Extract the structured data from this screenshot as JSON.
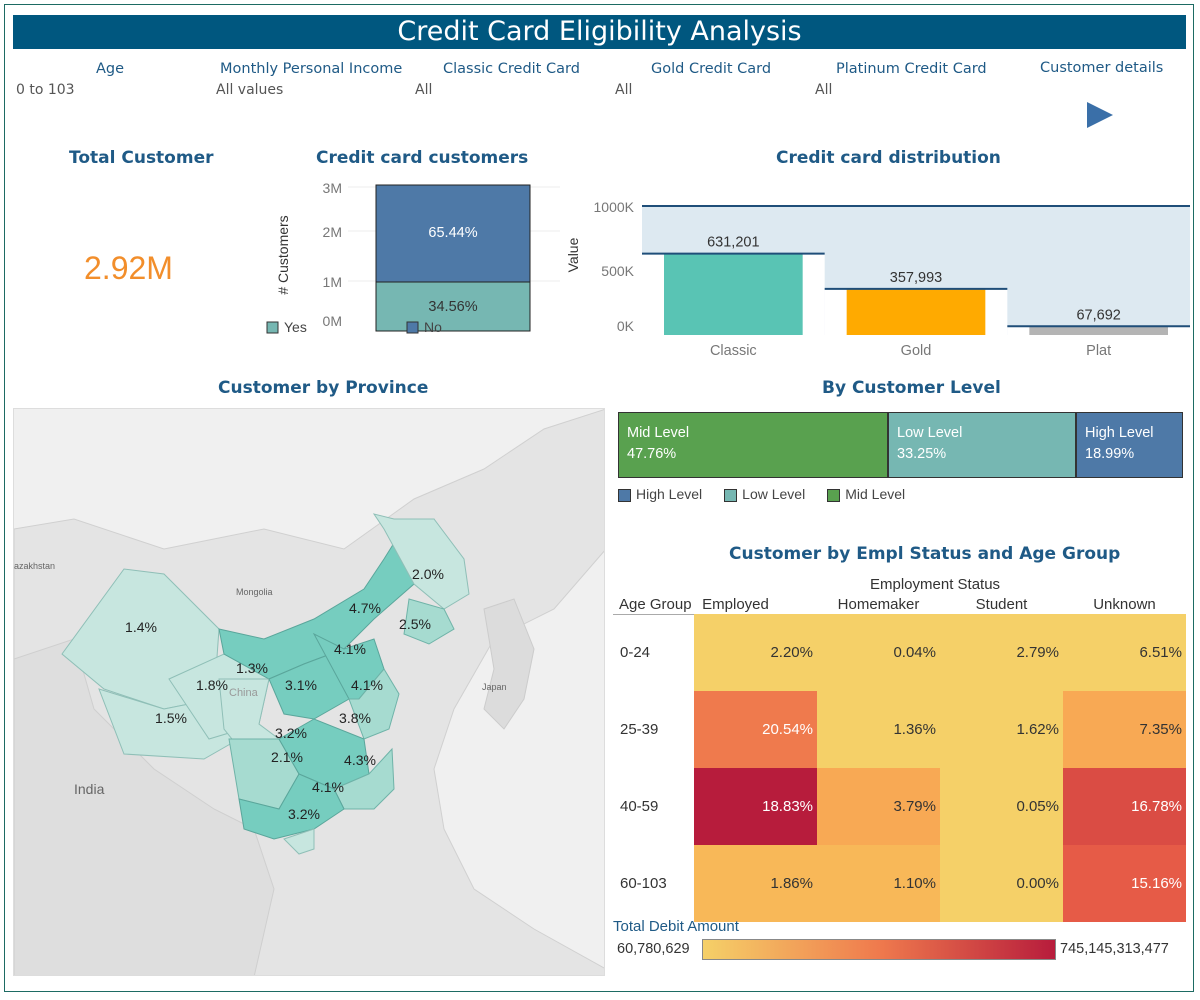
{
  "header": {
    "title": "Credit Card Eligibility Analysis"
  },
  "filters": [
    {
      "label": "Age",
      "value": "0 to 103"
    },
    {
      "label": "Monthly Personal Income",
      "value": "All values"
    },
    {
      "label": "Classic Credit Card",
      "value": "All"
    },
    {
      "label": "Gold Credit Card",
      "value": "All"
    },
    {
      "label": "Platinum Credit Card",
      "value": "All"
    },
    {
      "label": "Customer details",
      "value": ""
    }
  ],
  "kpi": {
    "title": "Total Customer",
    "value": "2.92M",
    "color": "#f28e2b"
  },
  "credit_customers": {
    "title": "Credit card customers",
    "ylabel": "# Customers",
    "ticks": [
      "3M",
      "2M",
      "1M",
      "0M"
    ],
    "segments": [
      {
        "name": "No",
        "label": "65.44%",
        "color": "#4e79a7"
      },
      {
        "name": "Yes",
        "label": "34.56%",
        "color": "#76b7b2"
      }
    ],
    "legend": [
      "Yes",
      "No"
    ]
  },
  "distribution": {
    "title": "Credit card distribution",
    "ylabel": "Value",
    "ticks": [
      "1000K",
      "500K",
      "0K"
    ],
    "bars": [
      {
        "category": "Classic",
        "label": "631,201",
        "color": "#59c4b4"
      },
      {
        "category": "Gold",
        "label": "357,993",
        "color": "#ffaa00"
      },
      {
        "category": "Plat",
        "label": "67,692",
        "color": "#b4b4b4"
      }
    ]
  },
  "province": {
    "title": "Customer by Province",
    "countries": [
      "azakhstan",
      "Mongolia",
      "India",
      "Japan",
      "China"
    ],
    "labels": [
      "2.0%",
      "4.7%",
      "2.5%",
      "1.4%",
      "4.1%",
      "1.3%",
      "1.8%",
      "3.1%",
      "4.1%",
      "1.5%",
      "3.8%",
      "3.2%",
      "2.1%",
      "4.3%",
      "4.1%",
      "3.2%"
    ]
  },
  "customer_level": {
    "title": "By Customer Level",
    "segments": [
      {
        "name": "Mid Level",
        "value": "47.76%",
        "color": "#59a14f"
      },
      {
        "name": "Low Level",
        "value": "33.25%",
        "color": "#76b7b2"
      },
      {
        "name": "High Level",
        "value": "18.99%",
        "color": "#4e79a7"
      }
    ],
    "legend": [
      {
        "name": "High Level",
        "color": "#4e79a7"
      },
      {
        "name": "Low Level",
        "color": "#76b7b2"
      },
      {
        "name": "Mid Level",
        "color": "#59a14f"
      }
    ]
  },
  "heatmap": {
    "title": "Customer by Empl Status and Age Group",
    "col_header": "Employment Status",
    "row_header": "Age Group",
    "columns": [
      "Employed",
      "Homemaker",
      "Student",
      "Unknown"
    ],
    "rows": [
      {
        "label": "0-24",
        "values": [
          "2.20%",
          "0.04%",
          "2.79%",
          "6.51%"
        ],
        "colors": [
          "#f5d068",
          "#f5d068",
          "#f5d068",
          "#f5d068"
        ]
      },
      {
        "label": "25-39",
        "values": [
          "20.54%",
          "1.36%",
          "1.62%",
          "7.35%"
        ],
        "colors": [
          "#ef7a4d",
          "#f5d068",
          "#f5d068",
          "#f8a954"
        ]
      },
      {
        "label": "40-59",
        "values": [
          "18.83%",
          "3.79%",
          "0.05%",
          "16.78%"
        ],
        "colors": [
          "#b71c3c",
          "#f8a954",
          "#f5d068",
          "#da4c44"
        ]
      },
      {
        "label": "60-103",
        "values": [
          "1.86%",
          "1.10%",
          "0.00%",
          "15.16%"
        ],
        "colors": [
          "#f8b858",
          "#f8b858",
          "#f5d068",
          "#e65b47"
        ]
      }
    ],
    "legend_title": "Total Debit Amount",
    "legend_min": "60,780,629",
    "legend_max": "745,145,313,477"
  },
  "chart_data": [
    {
      "type": "bar",
      "title": "Credit card customers",
      "ylabel": "# Customers",
      "categories": [
        "Yes",
        "No"
      ],
      "values": [
        34.56,
        65.44
      ],
      "ylim": [
        0,
        3000000
      ],
      "stacked": true
    },
    {
      "type": "bar",
      "title": "Credit card distribution",
      "ylabel": "Value",
      "categories": [
        "Classic",
        "Gold",
        "Plat"
      ],
      "values": [
        631201,
        357993,
        67692
      ],
      "ylim": [
        0,
        1000000
      ]
    },
    {
      "type": "bar",
      "title": "By Customer Level",
      "categories": [
        "Mid Level",
        "Low Level",
        "High Level"
      ],
      "values": [
        47.76,
        33.25,
        18.99
      ]
    },
    {
      "type": "heatmap",
      "title": "Customer by Empl Status and Age Group",
      "x": [
        "Employed",
        "Homemaker",
        "Student",
        "Unknown"
      ],
      "y": [
        "0-24",
        "25-39",
        "40-59",
        "60-103"
      ],
      "values": [
        [
          2.2,
          0.04,
          2.79,
          6.51
        ],
        [
          20.54,
          1.36,
          1.62,
          7.35
        ],
        [
          18.83,
          3.79,
          0.05,
          16.78
        ],
        [
          1.86,
          1.1,
          0.0,
          15.16
        ]
      ]
    }
  ]
}
